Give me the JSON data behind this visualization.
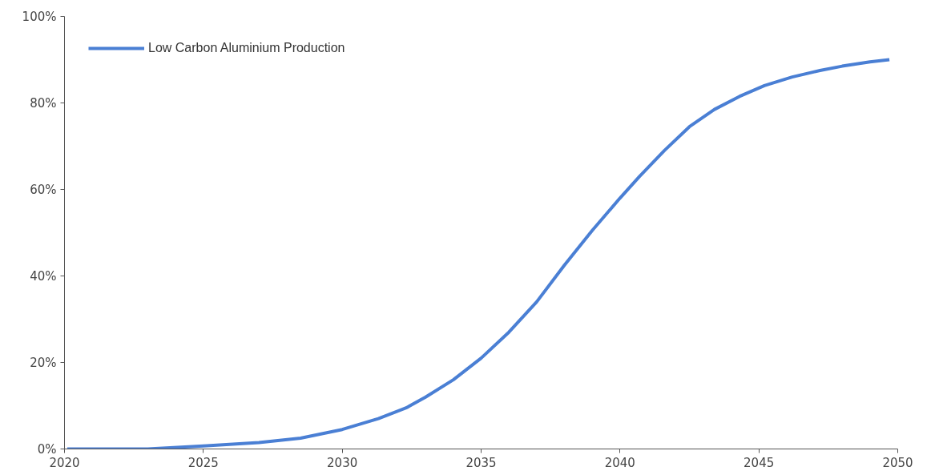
{
  "chart_data": {
    "type": "line",
    "xlim": [
      2020,
      2050
    ],
    "xticks": [
      2020,
      2025,
      2030,
      2035,
      2040,
      2045,
      2050
    ],
    "ylim": [
      0,
      100
    ],
    "yticks": [
      {
        "value": 0,
        "label": "0%"
      },
      {
        "value": 20,
        "label": "20%"
      },
      {
        "value": 40,
        "label": "40%"
      },
      {
        "value": 60,
        "label": "60%"
      },
      {
        "value": 80,
        "label": "80%"
      },
      {
        "value": 100,
        "label": "100%"
      }
    ],
    "grid": false,
    "legend": "top left",
    "marker": "none",
    "line_style": "solid",
    "series": [
      {
        "name": "Low Carbon Aluminium Production",
        "color": "#4a7fd4",
        "x": [
          2020.1,
          2023,
          2025,
          2027,
          2028.5,
          2030,
          2031.3,
          2032.3,
          2033,
          2034,
          2035,
          2036,
          2037,
          2038,
          2039,
          2040,
          2040.7,
          2041.6,
          2042.5,
          2043.4,
          2044.3,
          2045.2,
          2046.2,
          2047.2,
          2048,
          2049,
          2049.7
        ],
        "values": [
          0,
          0,
          0.7,
          1.5,
          2.5,
          4.5,
          7,
          9.5,
          12,
          16,
          21,
          27,
          34,
          42.5,
          50.5,
          58,
          63,
          69,
          74.5,
          78.5,
          81.5,
          84,
          86,
          87.5,
          88.5,
          89.5,
          90
        ]
      }
    ]
  }
}
